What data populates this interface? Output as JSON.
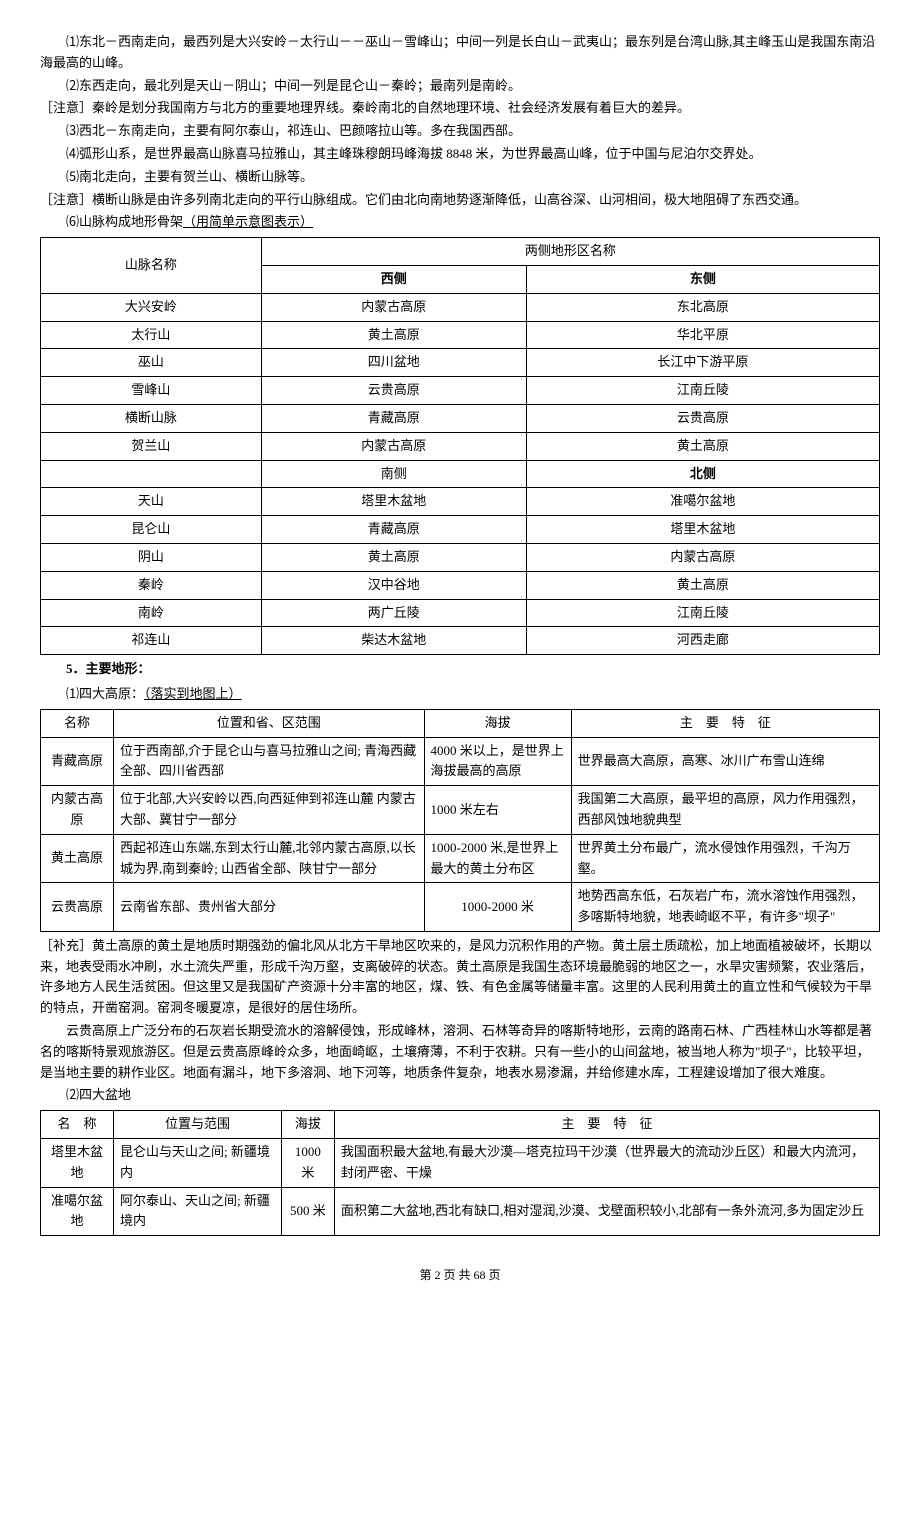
{
  "intro": {
    "p1": "⑴东北－西南走向，最西列是大兴安岭－太行山－－巫山－雪峰山；中间一列是长白山－武夷山；最东列是台湾山脉,其主峰玉山是我国东南沿海最高的山峰。",
    "p2": "⑵东西走向，最北列是天山－阴山；中间一列是昆仑山－秦岭；最南列是南岭。",
    "note1": "［注意］秦岭是划分我国南方与北方的重要地理界线。秦岭南北的自然地理环境、社会经济发展有着巨大的差异。",
    "p3": "⑶西北－东南走向，主要有阿尔泰山，祁连山、巴颜喀拉山等。多在我国西部。",
    "p4": "⑷弧形山系，是世界最高山脉喜马拉雅山，其主峰珠穆朗玛峰海拔 8848 米，为世界最高山峰，位于中国与尼泊尔交界处。",
    "p5": "⑸南北走向，主要有贺兰山、横断山脉等。",
    "note2": "［注意］横断山脉是由许多列南北走向的平行山脉组成。它们由北向南地势逐渐降低，山高谷深、山河相间，极大地阻碍了东西交通。",
    "p6_prefix": "⑹山脉构成地形骨架",
    "p6_underline": "（用简单示意图表示）"
  },
  "table1": {
    "h_mountain": "山脉名称",
    "h_both": "两侧地形区名称",
    "h_west": "西侧",
    "h_east": "东侧",
    "h_south": "南侧",
    "h_north": "北侧",
    "rows_we": [
      {
        "m": "大兴安岭",
        "w": "内蒙古高原",
        "e": "东北高原"
      },
      {
        "m": "太行山",
        "w": "黄土高原",
        "e": "华北平原"
      },
      {
        "m": "巫山",
        "w": "四川盆地",
        "e": "长江中下游平原"
      },
      {
        "m": "雪峰山",
        "w": "云贵高原",
        "e": "江南丘陵"
      },
      {
        "m": "横断山脉",
        "w": "青藏高原",
        "e": "云贵高原"
      },
      {
        "m": "贺兰山",
        "w": "内蒙古高原",
        "e": "黄土高原"
      }
    ],
    "rows_sn": [
      {
        "m": "天山",
        "s": "塔里木盆地",
        "n": "准噶尔盆地"
      },
      {
        "m": "昆仑山",
        "s": "青藏高原",
        "n": "塔里木盆地"
      },
      {
        "m": "阴山",
        "s": "黄土高原",
        "n": "内蒙古高原"
      },
      {
        "m": "秦岭",
        "s": "汉中谷地",
        "n": "黄土高原"
      },
      {
        "m": "南岭",
        "s": "两广丘陵",
        "n": "江南丘陵"
      },
      {
        "m": "祁连山",
        "s": "柴达木盆地",
        "n": "河西走廊"
      }
    ]
  },
  "section5": {
    "title": "5．主要地形：",
    "sub1_prefix": "⑴四大高原：",
    "sub1_underline": "（落实到地图上）"
  },
  "table2": {
    "h_name": "名称",
    "h_loc": "位置和省、区范围",
    "h_alt": "海拔",
    "h_feat": "主　要　特　征",
    "rows": [
      {
        "name": "青藏高原",
        "loc": "位于西南部,介于昆仑山与喜马拉雅山之间; 青海西藏全部、四川省西部",
        "alt": "4000 米以上，是世界上海拔最高的高原",
        "feat": "世界最高大高原，高寒、冰川广布雪山连绵"
      },
      {
        "name": "内蒙古高原",
        "loc": "位于北部,大兴安岭以西,向西延伸到祁连山麓 内蒙古大部、冀甘宁一部分",
        "alt": "1000 米左右",
        "feat": "我国第二大高原，最平坦的高原，风力作用强烈，西部风蚀地貌典型"
      },
      {
        "name": "黄土高原",
        "loc": "西起祁连山东端,东到太行山麓,北邻内蒙古高原,以长城为界,南到秦岭; 山西省全部、陕甘宁一部分",
        "alt": "1000-2000 米,是世界上最大的黄土分布区",
        "feat": "世界黄土分布最广，流水侵蚀作用强烈，千沟万壑。"
      },
      {
        "name": "云贵高原",
        "loc": "云南省东部、贵州省大部分",
        "alt": "1000-2000 米",
        "feat": "地势西高东低，石灰岩广布，流水溶蚀作用强烈，多喀斯特地貌，地表崎岖不平，有许多\"坝子\""
      }
    ]
  },
  "supplement": {
    "p1": "［补充］黄土高原的黄土是地质时期强劲的偏北风从北方干旱地区吹来的，是风力沉积作用的产物。黄土层土质疏松，加上地面植被破坏，长期以来，地表受雨水冲刷，水土流失严重，形成千沟万壑，支离破碎的状态。黄土高原是我国生态环境最脆弱的地区之一，水旱灾害频繁，农业落后，许多地方人民生活贫困。但这里又是我国矿产资源十分丰富的地区，煤、铁、有色金属等储量丰富。这里的人民利用黄土的直立性和气候较为干旱的特点，开凿窑洞。窑洞冬暖夏凉，是很好的居住场所。",
    "p2": "云贵高原上广泛分布的石灰岩长期受流水的溶解侵蚀，形成峰林，溶洞、石林等奇异的喀斯特地形，云南的路南石林、广西桂林山水等都是著名的喀斯特景观旅游区。但是云贵高原峰岭众多，地面崎岖，土壤瘠薄，不利于农耕。只有一些小的山间盆地，被当地人称为\"坝子\"，比较平坦，是当地主要的耕作业区。地面有漏斗，地下多溶洞、地下河等，地质条件复杂，地表水易渗漏，并给修建水库，工程建设增加了很大难度。",
    "sub2": "⑵四大盆地"
  },
  "table3": {
    "h_name": "名　称",
    "h_loc": "位置与范围",
    "h_alt": "海拔",
    "h_feat": "主　要　特　征",
    "rows": [
      {
        "name": "塔里木盆地",
        "loc": "昆仑山与天山之间; 新疆境内",
        "alt": "1000 米",
        "feat": "我国面积最大盆地,有最大沙漠—塔克拉玛干沙漠（世界最大的流动沙丘区）和最大内流河，封闭严密、干燥"
      },
      {
        "name": "准噶尔盆地",
        "loc": "阿尔泰山、天山之间; 新疆境内",
        "alt": "500 米",
        "feat": "面积第二大盆地,西北有缺口,相对湿润,沙漠、戈壁面积较小,北部有一条外流河,多为固定沙丘"
      }
    ]
  },
  "footer": "第 2 页 共 68 页"
}
